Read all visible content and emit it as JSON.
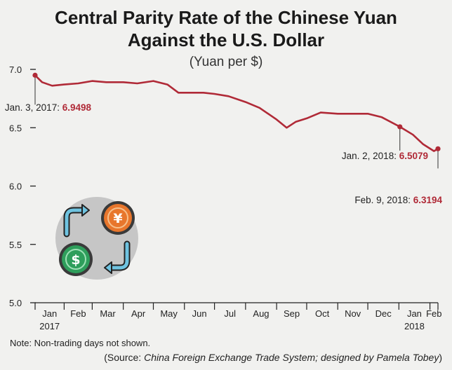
{
  "colors": {
    "line": "#b02a37",
    "icon_circle": "#c6c6c6",
    "arrow": "#6fc3e0",
    "yuan_coin": "#e8762c",
    "dollar_coin": "#2e9e5b"
  },
  "icons": [
    "yuan-coin-icon",
    "dollar-coin-icon",
    "exchange-arrow-icon"
  ],
  "chart_data": {
    "type": "line",
    "title_line1": "Central Parity Rate of the Chinese Yuan",
    "title_line2": "Against the U.S. Dollar",
    "subtitle": "(Yuan per $)",
    "ylim": [
      5.0,
      7.0
    ],
    "yticks": [
      "7.0",
      "6.5",
      "6.0",
      "5.5",
      "5.0"
    ],
    "grid": false,
    "xticks": [
      {
        "label": "Jan",
        "year": "2017"
      },
      {
        "label": "Feb"
      },
      {
        "label": "Mar"
      },
      {
        "label": "Apr"
      },
      {
        "label": "May"
      },
      {
        "label": "Jun"
      },
      {
        "label": "Jul"
      },
      {
        "label": "Aug"
      },
      {
        "label": "Sep"
      },
      {
        "label": "Oct"
      },
      {
        "label": "Nov"
      },
      {
        "label": "Dec"
      },
      {
        "label": "Jan",
        "year": "2018"
      },
      {
        "label": "Feb"
      }
    ],
    "series": [
      {
        "x": [
          "2017-01-03",
          "2017-01-10",
          "2017-01-20",
          "2017-02-01",
          "2017-02-15",
          "2017-03-01",
          "2017-03-15",
          "2017-04-01",
          "2017-04-15",
          "2017-05-01",
          "2017-05-15",
          "2017-05-26",
          "2017-06-05",
          "2017-06-20",
          "2017-07-01",
          "2017-07-15",
          "2017-08-01",
          "2017-08-15",
          "2017-09-01",
          "2017-09-11",
          "2017-09-20",
          "2017-10-01",
          "2017-10-15",
          "2017-11-01",
          "2017-11-15",
          "2017-12-01",
          "2017-12-15",
          "2018-01-02",
          "2018-01-15",
          "2018-01-25",
          "2018-02-05",
          "2018-02-09"
        ],
        "values": [
          6.9498,
          6.89,
          6.86,
          6.87,
          6.88,
          6.9,
          6.89,
          6.89,
          6.88,
          6.9,
          6.87,
          6.8,
          6.8,
          6.8,
          6.79,
          6.77,
          6.72,
          6.67,
          6.57,
          6.5,
          6.55,
          6.58,
          6.63,
          6.62,
          6.62,
          6.62,
          6.59,
          6.5079,
          6.44,
          6.36,
          6.3,
          6.3194
        ]
      }
    ],
    "annotations": [
      {
        "label": "Jan. 3, 2017:",
        "value": "6.9498",
        "x": "2017-01-03",
        "y": 6.9498
      },
      {
        "label": "Jan. 2, 2018:",
        "value": "6.5079",
        "x": "2018-01-02",
        "y": 6.5079
      },
      {
        "label": "Feb. 9, 2018:",
        "value": "6.3194",
        "x": "2018-02-09",
        "y": 6.3194
      }
    ]
  },
  "note": "Note: Non-trading days not shown.",
  "source": {
    "open": "(Source: ",
    "italic": "China Foreign Exchange Trade System; designed by Pamela Tobey",
    "close": ")"
  }
}
